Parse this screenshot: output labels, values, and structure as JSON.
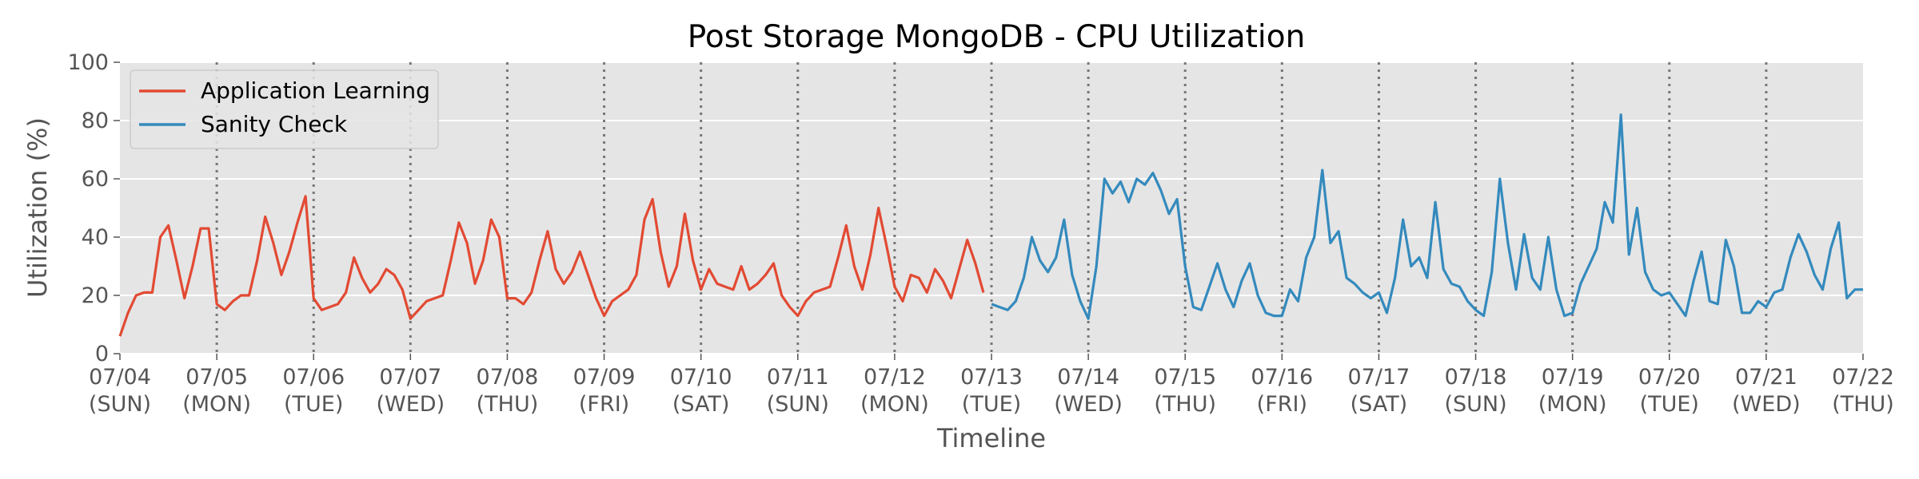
{
  "chart_data": {
    "type": "line",
    "title": "Post Storage MongoDB - CPU Utilization",
    "xlabel": "Timeline",
    "ylabel": "Utilization (%)",
    "ylim": [
      0,
      100
    ],
    "yticks": [
      "0",
      "20",
      "40",
      "60",
      "80",
      "100"
    ],
    "xlim": [
      "07/04 00:00",
      "07/22 00:00"
    ],
    "xticks": [
      {
        "date": "07/04",
        "day": "(SUN)"
      },
      {
        "date": "07/05",
        "day": "(MON)"
      },
      {
        "date": "07/06",
        "day": "(TUE)"
      },
      {
        "date": "07/07",
        "day": "(WED)"
      },
      {
        "date": "07/08",
        "day": "(THU)"
      },
      {
        "date": "07/09",
        "day": "(FRI)"
      },
      {
        "date": "07/10",
        "day": "(SAT)"
      },
      {
        "date": "07/11",
        "day": "(SUN)"
      },
      {
        "date": "07/12",
        "day": "(MON)"
      },
      {
        "date": "07/13",
        "day": "(TUE)"
      },
      {
        "date": "07/14",
        "day": "(WED)"
      },
      {
        "date": "07/15",
        "day": "(THU)"
      },
      {
        "date": "07/16",
        "day": "(FRI)"
      },
      {
        "date": "07/17",
        "day": "(SAT)"
      },
      {
        "date": "07/18",
        "day": "(SUN)"
      },
      {
        "date": "07/19",
        "day": "(MON)"
      },
      {
        "date": "07/20",
        "day": "(TUE)"
      },
      {
        "date": "07/21",
        "day": "(WED)"
      },
      {
        "date": "07/22",
        "day": "(THU)"
      }
    ],
    "grid": true,
    "day_separators": "dotted vertical lines at each day",
    "legend": "top-left",
    "colors": {
      "background": "#E5E5E5",
      "grid": "#FFFFFF",
      "separator": "#777777"
    },
    "series": [
      {
        "name": "Application Learning",
        "color": "#E24A33",
        "points": [
          [
            "07/04 00:00",
            6
          ],
          [
            "07/04 02:00",
            14
          ],
          [
            "07/04 04:00",
            20
          ],
          [
            "07/04 06:00",
            21
          ],
          [
            "07/04 08:00",
            21
          ],
          [
            "07/04 10:00",
            40
          ],
          [
            "07/04 12:00",
            44
          ],
          [
            "07/04 14:00",
            32
          ],
          [
            "07/04 16:00",
            19
          ],
          [
            "07/04 18:00",
            30
          ],
          [
            "07/04 20:00",
            43
          ],
          [
            "07/04 22:00",
            43
          ],
          [
            "07/05 00:00",
            17
          ],
          [
            "07/05 02:00",
            15
          ],
          [
            "07/05 04:00",
            18
          ],
          [
            "07/05 06:00",
            20
          ],
          [
            "07/05 08:00",
            20
          ],
          [
            "07/05 10:00",
            32
          ],
          [
            "07/05 12:00",
            47
          ],
          [
            "07/05 14:00",
            38
          ],
          [
            "07/05 16:00",
            27
          ],
          [
            "07/05 18:00",
            35
          ],
          [
            "07/05 20:00",
            45
          ],
          [
            "07/05 22:00",
            54
          ],
          [
            "07/06 00:00",
            19
          ],
          [
            "07/06 02:00",
            15
          ],
          [
            "07/06 04:00",
            16
          ],
          [
            "07/06 06:00",
            17
          ],
          [
            "07/06 08:00",
            21
          ],
          [
            "07/06 10:00",
            33
          ],
          [
            "07/06 12:00",
            26
          ],
          [
            "07/06 14:00",
            21
          ],
          [
            "07/06 16:00",
            24
          ],
          [
            "07/06 18:00",
            29
          ],
          [
            "07/06 20:00",
            27
          ],
          [
            "07/06 22:00",
            22
          ],
          [
            "07/07 00:00",
            12
          ],
          [
            "07/07 02:00",
            15
          ],
          [
            "07/07 04:00",
            18
          ],
          [
            "07/07 06:00",
            19
          ],
          [
            "07/07 08:00",
            20
          ],
          [
            "07/07 10:00",
            32
          ],
          [
            "07/07 12:00",
            45
          ],
          [
            "07/07 14:00",
            38
          ],
          [
            "07/07 16:00",
            24
          ],
          [
            "07/07 18:00",
            32
          ],
          [
            "07/07 20:00",
            46
          ],
          [
            "07/07 22:00",
            40
          ],
          [
            "07/08 00:00",
            19
          ],
          [
            "07/08 02:00",
            19
          ],
          [
            "07/08 04:00",
            17
          ],
          [
            "07/08 06:00",
            21
          ],
          [
            "07/08 08:00",
            32
          ],
          [
            "07/08 10:00",
            42
          ],
          [
            "07/08 12:00",
            29
          ],
          [
            "07/08 14:00",
            24
          ],
          [
            "07/08 16:00",
            28
          ],
          [
            "07/08 18:00",
            35
          ],
          [
            "07/08 20:00",
            27
          ],
          [
            "07/08 22:00",
            19
          ],
          [
            "07/09 00:00",
            13
          ],
          [
            "07/09 02:00",
            18
          ],
          [
            "07/09 04:00",
            20
          ],
          [
            "07/09 06:00",
            22
          ],
          [
            "07/09 08:00",
            27
          ],
          [
            "07/09 10:00",
            46
          ],
          [
            "07/09 12:00",
            53
          ],
          [
            "07/09 14:00",
            35
          ],
          [
            "07/09 16:00",
            23
          ],
          [
            "07/09 18:00",
            30
          ],
          [
            "07/09 20:00",
            48
          ],
          [
            "07/09 22:00",
            32
          ],
          [
            "07/10 00:00",
            22
          ],
          [
            "07/10 02:00",
            29
          ],
          [
            "07/10 04:00",
            24
          ],
          [
            "07/10 06:00",
            23
          ],
          [
            "07/10 08:00",
            22
          ],
          [
            "07/10 10:00",
            30
          ],
          [
            "07/10 12:00",
            22
          ],
          [
            "07/10 14:00",
            24
          ],
          [
            "07/10 16:00",
            27
          ],
          [
            "07/10 18:00",
            31
          ],
          [
            "07/10 20:00",
            20
          ],
          [
            "07/10 22:00",
            16
          ],
          [
            "07/11 00:00",
            13
          ],
          [
            "07/11 02:00",
            18
          ],
          [
            "07/11 04:00",
            21
          ],
          [
            "07/11 06:00",
            22
          ],
          [
            "07/11 08:00",
            23
          ],
          [
            "07/11 10:00",
            33
          ],
          [
            "07/11 12:00",
            44
          ],
          [
            "07/11 14:00",
            30
          ],
          [
            "07/11 16:00",
            22
          ],
          [
            "07/11 18:00",
            34
          ],
          [
            "07/11 20:00",
            50
          ],
          [
            "07/11 22:00",
            37
          ],
          [
            "07/12 00:00",
            23
          ],
          [
            "07/12 02:00",
            18
          ],
          [
            "07/12 04:00",
            27
          ],
          [
            "07/12 06:00",
            26
          ],
          [
            "07/12 08:00",
            21
          ],
          [
            "07/12 10:00",
            29
          ],
          [
            "07/12 12:00",
            25
          ],
          [
            "07/12 14:00",
            19
          ],
          [
            "07/12 16:00",
            29
          ],
          [
            "07/12 18:00",
            39
          ],
          [
            "07/12 20:00",
            31
          ],
          [
            "07/12 22:00",
            21
          ]
        ]
      },
      {
        "name": "Sanity Check",
        "color": "#348ABD",
        "points": [
          [
            "07/13 00:00",
            17
          ],
          [
            "07/13 02:00",
            16
          ],
          [
            "07/13 04:00",
            15
          ],
          [
            "07/13 06:00",
            18
          ],
          [
            "07/13 08:00",
            26
          ],
          [
            "07/13 10:00",
            40
          ],
          [
            "07/13 12:00",
            32
          ],
          [
            "07/13 14:00",
            28
          ],
          [
            "07/13 16:00",
            33
          ],
          [
            "07/13 18:00",
            46
          ],
          [
            "07/13 20:00",
            27
          ],
          [
            "07/13 22:00",
            18
          ],
          [
            "07/14 00:00",
            12
          ],
          [
            "07/14 02:00",
            30
          ],
          [
            "07/14 04:00",
            60
          ],
          [
            "07/14 06:00",
            55
          ],
          [
            "07/14 08:00",
            59
          ],
          [
            "07/14 10:00",
            52
          ],
          [
            "07/14 12:00",
            60
          ],
          [
            "07/14 14:00",
            58
          ],
          [
            "07/14 16:00",
            62
          ],
          [
            "07/14 18:00",
            56
          ],
          [
            "07/14 20:00",
            48
          ],
          [
            "07/14 22:00",
            53
          ],
          [
            "07/15 00:00",
            30
          ],
          [
            "07/15 02:00",
            16
          ],
          [
            "07/15 04:00",
            15
          ],
          [
            "07/15 06:00",
            23
          ],
          [
            "07/15 08:00",
            31
          ],
          [
            "07/15 10:00",
            22
          ],
          [
            "07/15 12:00",
            16
          ],
          [
            "07/15 14:00",
            25
          ],
          [
            "07/15 16:00",
            31
          ],
          [
            "07/15 18:00",
            20
          ],
          [
            "07/15 20:00",
            14
          ],
          [
            "07/15 22:00",
            13
          ],
          [
            "07/16 00:00",
            13
          ],
          [
            "07/16 02:00",
            22
          ],
          [
            "07/16 04:00",
            18
          ],
          [
            "07/16 06:00",
            33
          ],
          [
            "07/16 08:00",
            40
          ],
          [
            "07/16 10:00",
            63
          ],
          [
            "07/16 12:00",
            38
          ],
          [
            "07/16 14:00",
            42
          ],
          [
            "07/16 16:00",
            26
          ],
          [
            "07/16 18:00",
            24
          ],
          [
            "07/16 20:00",
            21
          ],
          [
            "07/16 22:00",
            19
          ],
          [
            "07/17 00:00",
            21
          ],
          [
            "07/17 02:00",
            14
          ],
          [
            "07/17 04:00",
            26
          ],
          [
            "07/17 06:00",
            46
          ],
          [
            "07/17 08:00",
            30
          ],
          [
            "07/17 10:00",
            33
          ],
          [
            "07/17 12:00",
            26
          ],
          [
            "07/17 14:00",
            52
          ],
          [
            "07/17 16:00",
            29
          ],
          [
            "07/17 18:00",
            24
          ],
          [
            "07/17 20:00",
            23
          ],
          [
            "07/17 22:00",
            18
          ],
          [
            "07/18 00:00",
            15
          ],
          [
            "07/18 02:00",
            13
          ],
          [
            "07/18 04:00",
            28
          ],
          [
            "07/18 06:00",
            60
          ],
          [
            "07/18 08:00",
            38
          ],
          [
            "07/18 10:00",
            22
          ],
          [
            "07/18 12:00",
            41
          ],
          [
            "07/18 14:00",
            26
          ],
          [
            "07/18 16:00",
            22
          ],
          [
            "07/18 18:00",
            40
          ],
          [
            "07/18 20:00",
            22
          ],
          [
            "07/18 22:00",
            13
          ],
          [
            "07/19 00:00",
            14
          ],
          [
            "07/19 02:00",
            24
          ],
          [
            "07/19 04:00",
            30
          ],
          [
            "07/19 06:00",
            36
          ],
          [
            "07/19 08:00",
            52
          ],
          [
            "07/19 10:00",
            45
          ],
          [
            "07/19 12:00",
            82
          ],
          [
            "07/19 14:00",
            34
          ],
          [
            "07/19 16:00",
            50
          ],
          [
            "07/19 18:00",
            28
          ],
          [
            "07/19 20:00",
            22
          ],
          [
            "07/19 22:00",
            20
          ],
          [
            "07/20 00:00",
            21
          ],
          [
            "07/20 02:00",
            17
          ],
          [
            "07/20 04:00",
            13
          ],
          [
            "07/20 06:00",
            25
          ],
          [
            "07/20 08:00",
            35
          ],
          [
            "07/20 10:00",
            18
          ],
          [
            "07/20 12:00",
            17
          ],
          [
            "07/20 14:00",
            39
          ],
          [
            "07/20 16:00",
            30
          ],
          [
            "07/20 18:00",
            14
          ],
          [
            "07/20 20:00",
            14
          ],
          [
            "07/20 22:00",
            18
          ],
          [
            "07/21 00:00",
            16
          ],
          [
            "07/21 02:00",
            21
          ],
          [
            "07/21 04:00",
            22
          ],
          [
            "07/21 06:00",
            33
          ],
          [
            "07/21 08:00",
            41
          ],
          [
            "07/21 10:00",
            35
          ],
          [
            "07/21 12:00",
            27
          ],
          [
            "07/21 14:00",
            22
          ],
          [
            "07/21 16:00",
            36
          ],
          [
            "07/21 18:00",
            45
          ],
          [
            "07/21 20:00",
            19
          ],
          [
            "07/21 22:00",
            22
          ],
          [
            "07/22 00:00",
            22
          ]
        ]
      }
    ]
  }
}
